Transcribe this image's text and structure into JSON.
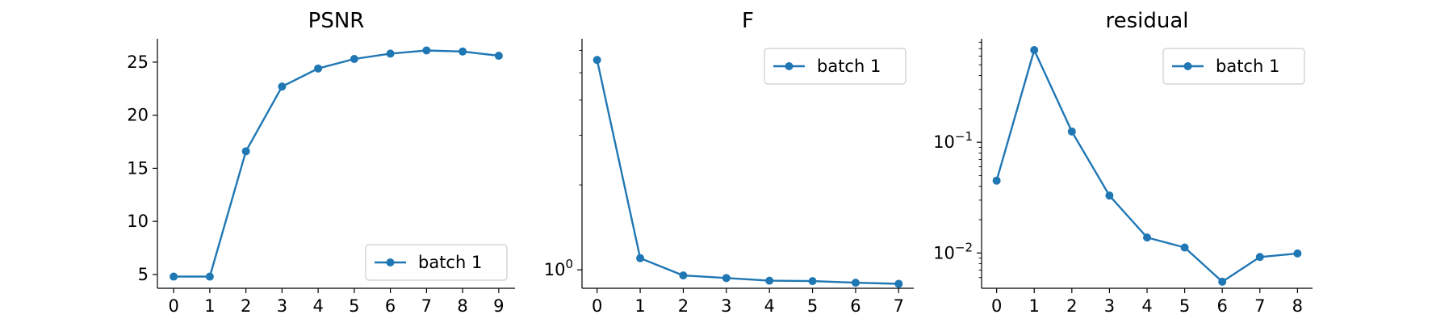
{
  "chart_data": [
    {
      "type": "line",
      "title": "PSNR",
      "xlabel": "",
      "ylabel": "",
      "yscale": "linear",
      "x": [
        0,
        1,
        2,
        3,
        4,
        5,
        6,
        7,
        8,
        9
      ],
      "xticks": [
        0,
        1,
        2,
        3,
        4,
        5,
        6,
        7,
        8,
        9
      ],
      "yticks": [
        5,
        10,
        15,
        20,
        25
      ],
      "ytick_labels": [
        "5",
        "10",
        "15",
        "20",
        "25"
      ],
      "xlim": [
        -0.45,
        9.45
      ],
      "ylim": [
        3.7,
        27.2
      ],
      "grid": false,
      "legend_position": "lower-right",
      "series": [
        {
          "name": "batch 1",
          "color": "#1f77b4",
          "marker": "circle",
          "values": [
            4.8,
            4.8,
            16.6,
            22.7,
            24.4,
            25.3,
            25.8,
            26.1,
            26.0,
            25.6
          ]
        }
      ]
    },
    {
      "type": "line",
      "title": "F",
      "xlabel": "",
      "ylabel": "",
      "yscale": "log",
      "x": [
        0,
        1,
        2,
        3,
        4,
        5,
        6,
        7
      ],
      "xticks": [
        0,
        1,
        2,
        3,
        4,
        5,
        6,
        7
      ],
      "yticks": [
        1
      ],
      "ytick_labels": [
        "10^0"
      ],
      "minor_yticks": [
        2,
        3,
        4,
        5,
        6
      ],
      "xlim": [
        -0.35,
        7.35
      ],
      "ylim": [
        0.86,
        6.6
      ],
      "grid": false,
      "legend_position": "top-right",
      "series": [
        {
          "name": "batch 1",
          "color": "#1f77b4",
          "marker": "circle",
          "values": [
            5.55,
            1.1,
            0.955,
            0.935,
            0.915,
            0.912,
            0.9,
            0.892
          ]
        }
      ]
    },
    {
      "type": "line",
      "title": "residual",
      "xlabel": "",
      "ylabel": "",
      "yscale": "log",
      "x": [
        0,
        1,
        2,
        3,
        4,
        5,
        6,
        7,
        8
      ],
      "xticks": [
        0,
        1,
        2,
        3,
        4,
        5,
        6,
        7,
        8
      ],
      "yticks": [
        0.1,
        0.01
      ],
      "ytick_labels": [
        "10^−1",
        "10^−2"
      ],
      "minor_yticks": [
        0.006,
        0.007,
        0.008,
        0.009,
        0.02,
        0.03,
        0.04,
        0.05,
        0.06,
        0.07,
        0.08,
        0.09,
        0.2,
        0.3,
        0.4,
        0.5,
        0.6,
        0.7,
        0.8
      ],
      "xlim": [
        -0.4,
        8.4
      ],
      "ylim": [
        0.0048,
        0.86
      ],
      "grid": false,
      "legend_position": "top-right",
      "series": [
        {
          "name": "batch 1",
          "color": "#1f77b4",
          "marker": "circle",
          "values": [
            0.045,
            0.68,
            0.125,
            0.033,
            0.0138,
            0.0112,
            0.0055,
            0.0092,
            0.0099
          ]
        }
      ]
    }
  ]
}
